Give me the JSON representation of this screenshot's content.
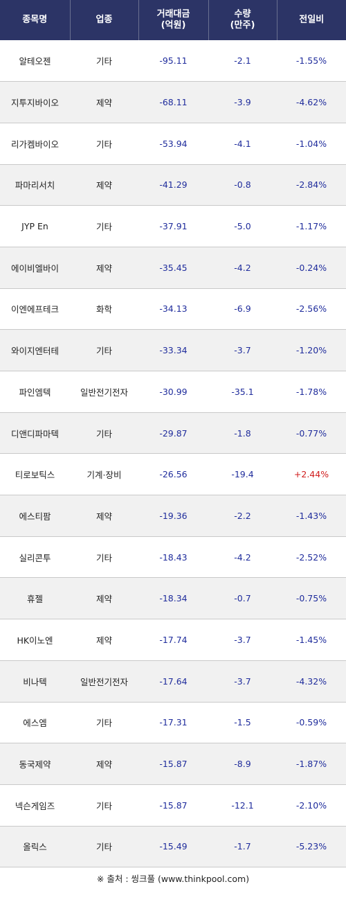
{
  "header": {
    "col1": "종목명",
    "col2": "업종",
    "col3_line1": "거래대금",
    "col3_line2": "(억원)",
    "col4_line1": "수량",
    "col4_line2": "(만주)",
    "col5": "전일비"
  },
  "rows": [
    {
      "name": "알테오젠",
      "sector": "기타",
      "amount": "-95.11",
      "qty": "-2.1",
      "change": "-1.55%"
    },
    {
      "name": "지투지바이오",
      "sector": "제약",
      "amount": "-68.11",
      "qty": "-3.9",
      "change": "-4.62%"
    },
    {
      "name": "리가켐바이오",
      "sector": "기타",
      "amount": "-53.94",
      "qty": "-4.1",
      "change": "-1.04%"
    },
    {
      "name": "파마리서치",
      "sector": "제약",
      "amount": "-41.29",
      "qty": "-0.8",
      "change": "-2.84%"
    },
    {
      "name": "JYP En",
      "sector": "기타",
      "amount": "-37.91",
      "qty": "-5.0",
      "change": "-1.17%"
    },
    {
      "name": "에이비엘바이",
      "sector": "제약",
      "amount": "-35.45",
      "qty": "-4.2",
      "change": "-0.24%"
    },
    {
      "name": "이엔에프테크",
      "sector": "화학",
      "amount": "-34.13",
      "qty": "-6.9",
      "change": "-2.56%"
    },
    {
      "name": "와이지엔터테",
      "sector": "기타",
      "amount": "-33.34",
      "qty": "-3.7",
      "change": "-1.20%"
    },
    {
      "name": "파인엠텍",
      "sector": "일반전기전자",
      "amount": "-30.99",
      "qty": "-35.1",
      "change": "-1.78%"
    },
    {
      "name": "디앤디파마텍",
      "sector": "기타",
      "amount": "-29.87",
      "qty": "-1.8",
      "change": "-0.77%"
    },
    {
      "name": "티로보틱스",
      "sector": "기계·장비",
      "amount": "-26.56",
      "qty": "-19.4",
      "change": "+2.44%"
    },
    {
      "name": "에스티팜",
      "sector": "제약",
      "amount": "-19.36",
      "qty": "-2.2",
      "change": "-1.43%"
    },
    {
      "name": "실리콘투",
      "sector": "기타",
      "amount": "-18.43",
      "qty": "-4.2",
      "change": "-2.52%"
    },
    {
      "name": "휴젤",
      "sector": "제약",
      "amount": "-18.34",
      "qty": "-0.7",
      "change": "-0.75%"
    },
    {
      "name": "HK이노엔",
      "sector": "제약",
      "amount": "-17.74",
      "qty": "-3.7",
      "change": "-1.45%"
    },
    {
      "name": "비나텍",
      "sector": "일반전기전자",
      "amount": "-17.64",
      "qty": "-3.7",
      "change": "-4.32%"
    },
    {
      "name": "에스엠",
      "sector": "기타",
      "amount": "-17.31",
      "qty": "-1.5",
      "change": "-0.59%"
    },
    {
      "name": "동국제약",
      "sector": "제약",
      "amount": "-15.87",
      "qty": "-8.9",
      "change": "-1.87%"
    },
    {
      "name": "넥슨게임즈",
      "sector": "기타",
      "amount": "-15.87",
      "qty": "-12.1",
      "change": "-2.10%"
    },
    {
      "name": "올릭스",
      "sector": "기타",
      "amount": "-15.49",
      "qty": "-1.7",
      "change": "-5.23%"
    }
  ],
  "footer": {
    "source": "※ 출처 : 씽크풀 (www.thinkpool.com)"
  },
  "colors": {
    "header_bg": "#2c3466",
    "negative": "#1f2c9c",
    "positive": "#d01c1c"
  }
}
